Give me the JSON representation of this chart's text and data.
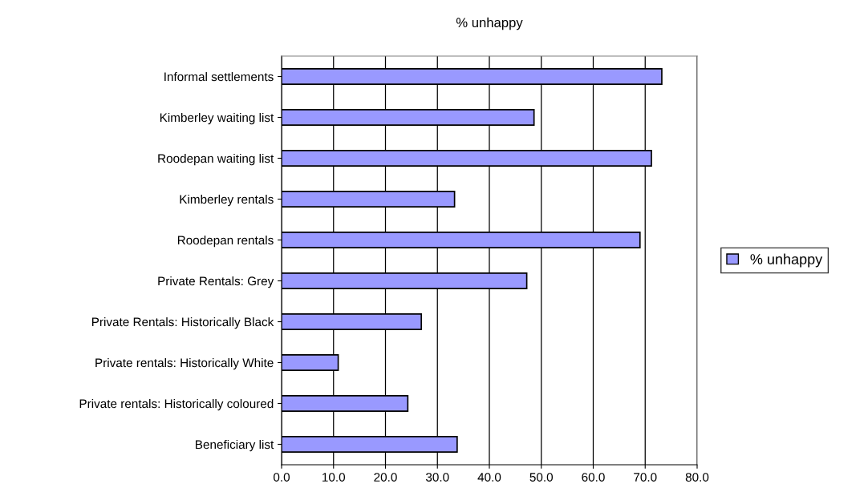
{
  "chart_data": {
    "type": "bar",
    "orientation": "horizontal",
    "title": "% unhappy",
    "categories": [
      "Informal settlements",
      "Kimberley waiting list",
      "Roodepan waiting list",
      "Kimberley rentals",
      "Roodepan rentals",
      "Private Rentals: Grey",
      "Private Rentals: Historically Black",
      "Private rentals: Historically White",
      "Private rentals: Historically coloured",
      "Beneficiary list"
    ],
    "series": [
      {
        "name": "% unhappy",
        "color": "#9999ff",
        "values": [
          73.2,
          48.6,
          71.2,
          33.3,
          69.0,
          47.2,
          26.9,
          10.9,
          24.3,
          33.8
        ]
      }
    ],
    "xlim": [
      0,
      80
    ],
    "xticks": [
      {
        "value": 0,
        "label": "0.0"
      },
      {
        "value": 10,
        "label": "10.0"
      },
      {
        "value": 20,
        "label": "20.0"
      },
      {
        "value": 30,
        "label": "30.0"
      },
      {
        "value": 40,
        "label": "40.0"
      },
      {
        "value": 50,
        "label": "50.0"
      },
      {
        "value": 60,
        "label": "60.0"
      },
      {
        "value": 70,
        "label": "70.0"
      },
      {
        "value": 80,
        "label": "80.0"
      }
    ],
    "grid": "x",
    "legend": "right"
  }
}
